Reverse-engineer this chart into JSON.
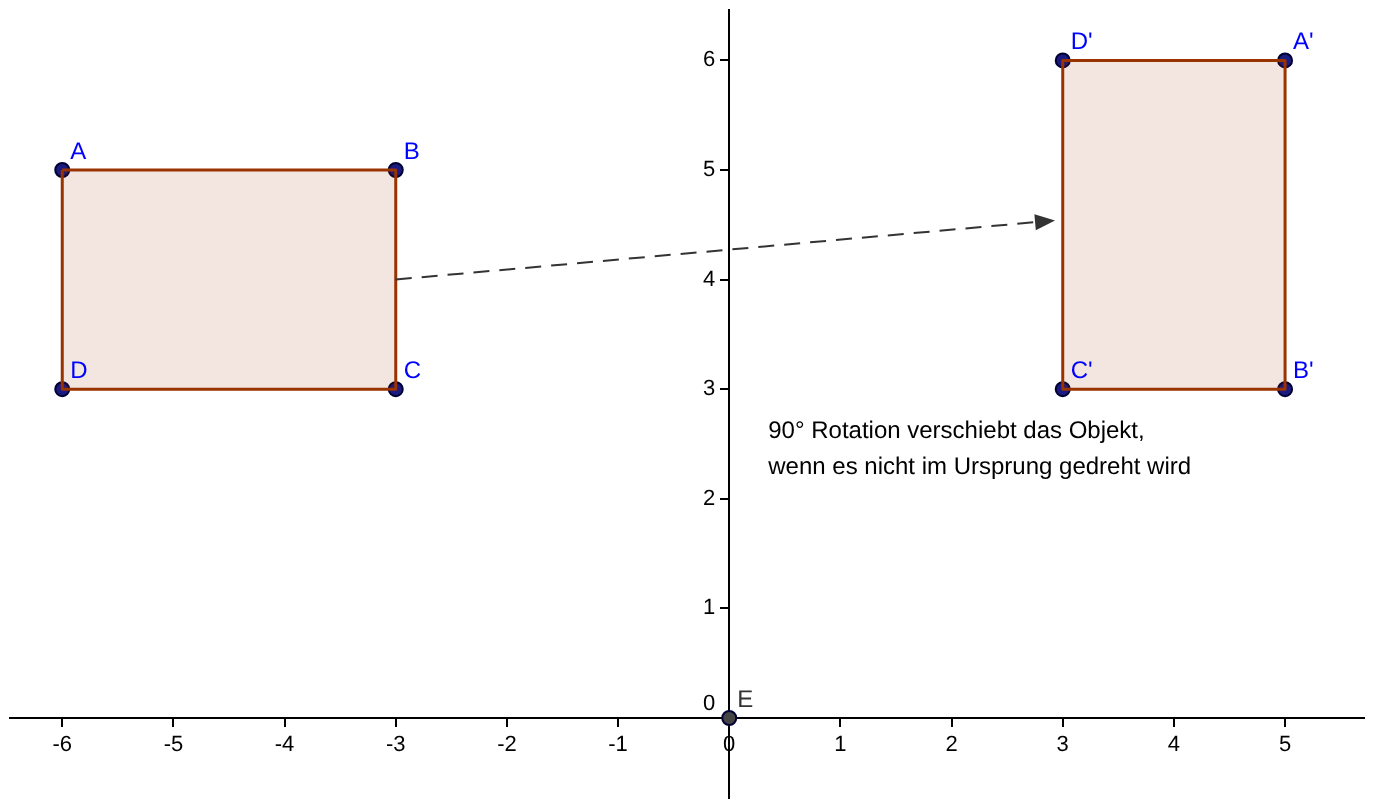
{
  "chart_data": {
    "type": "scatter",
    "xlim": [
      -6.47,
      5.71
    ],
    "ylim": [
      -0.73,
      6.46
    ],
    "xticks": [
      -6,
      -5,
      -4,
      -3,
      -2,
      -1,
      0,
      1,
      2,
      3,
      4,
      5
    ],
    "yticks": [
      0,
      1,
      2,
      3,
      4,
      5,
      6
    ],
    "grid": false,
    "legend": false,
    "marker": "circle",
    "series": [
      {
        "type": "area",
        "marker": "none",
        "color": "#993300",
        "x": [
          -6,
          -3,
          -3,
          -6,
          -6
        ],
        "values": [
          5,
          5,
          3,
          3,
          5
        ]
      },
      {
        "type": "area",
        "marker": "none",
        "color": "#993300",
        "x": [
          5,
          5,
          3,
          3,
          5
        ],
        "values": [
          6,
          3,
          3,
          6,
          6
        ]
      },
      {
        "type": "scatter",
        "color": "#1a1a80",
        "x": [
          -6,
          -3,
          -3,
          -6,
          3,
          5,
          3,
          5
        ],
        "values": [
          5,
          5,
          3,
          3,
          6,
          6,
          3,
          3
        ],
        "value_labels": [
          "A",
          "B",
          "C",
          "D",
          "D'",
          "A'",
          "C'",
          "B'"
        ]
      },
      {
        "type": "scatter",
        "color": "#444444",
        "x": [
          0
        ],
        "values": [
          0
        ],
        "value_labels": [
          "E"
        ]
      }
    ],
    "annotations": [
      "90° Rotation verschiebt das Objekt,\nwenn es nicht im Ursprung gedreht wird"
    ]
  }
}
